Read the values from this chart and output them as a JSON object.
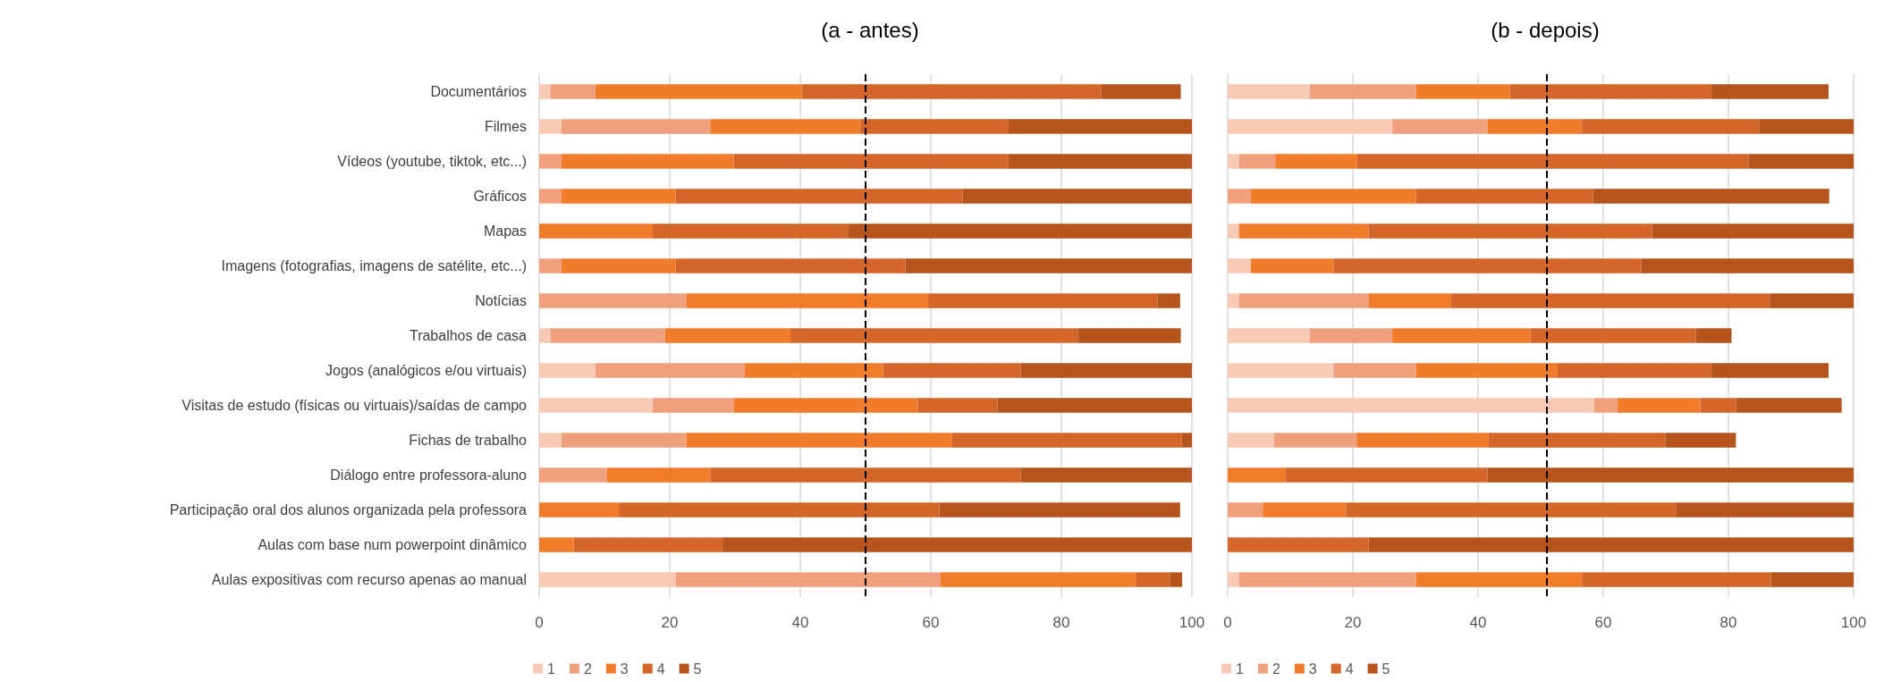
{
  "chart_data": [
    {
      "type": "bar",
      "orientation": "horizontal",
      "stacked": true,
      "title": "(a - antes)",
      "categories": [
        "Documentários",
        "Filmes",
        "Vídeos (youtube, tiktok, etc...)",
        "Gráficos",
        "Mapas",
        "Imagens (fotografias, imagens de satélite, etc...)",
        "Notícias",
        "Trabalhos de casa",
        "Jogos (analógicos e/ou virtuais)",
        "Visitas de estudo (físicas ou virtuais)/saídas de campo",
        "Fichas de trabalho",
        "Diálogo entre professora-aluno",
        "Participação oral dos alunos organizada pela professora",
        "Aulas com base num powerpoint dinâmico",
        "Aulas expositivas com recurso apenas ao manual"
      ],
      "series": [
        {
          "name": "1",
          "color": "#f8c9b4",
          "values": [
            1.7,
            3.4,
            0,
            0,
            0,
            0,
            0,
            1.7,
            8.6,
            17.4,
            3.4,
            0,
            0,
            0,
            20.9
          ]
        },
        {
          "name": "2",
          "color": "#f0a07c",
          "values": [
            6.9,
            22.8,
            3.4,
            3.4,
            0,
            3.4,
            22.6,
            17.6,
            22.9,
            12.4,
            19.2,
            10.4,
            0,
            0,
            40.6
          ]
        },
        {
          "name": "3",
          "color": "#f07c2c",
          "values": [
            31.7,
            22.9,
            26.4,
            17.5,
            17.4,
            17.5,
            37,
            19.2,
            21.2,
            28.2,
            40.6,
            15.8,
            12.2,
            5.3,
            29.9
          ]
        },
        {
          "name": "4",
          "color": "#d4662a",
          "values": [
            45.8,
            22.8,
            42.1,
            44,
            29.9,
            35.2,
            35.1,
            44,
            21.1,
            12.2,
            35.2,
            47.6,
            49.1,
            22.8,
            5.3
          ]
        },
        {
          "name": "5",
          "color": "#b5541c",
          "values": [
            12.2,
            28.1,
            28.1,
            35.1,
            52.7,
            43.9,
            3.5,
            15.8,
            26.2,
            29.8,
            1.6,
            26.2,
            36.9,
            71.9,
            1.8
          ]
        }
      ],
      "xlim": [
        0,
        100
      ],
      "xticks": [
        0,
        20,
        40,
        60,
        80,
        100
      ],
      "grid": "x",
      "legend": "bottom left",
      "ref_lines": [
        {
          "axis": "x",
          "value": 50,
          "label": null,
          "color": "#000000",
          "line_style": "dashed"
        }
      ]
    },
    {
      "type": "bar",
      "orientation": "horizontal",
      "stacked": true,
      "title": "(b - depois)",
      "categories": [
        null,
        null,
        null,
        null,
        null,
        null,
        null,
        null,
        null,
        null,
        null,
        null,
        null,
        null,
        null
      ],
      "series": [
        {
          "name": "1",
          "color": "#f8c9b4",
          "values": [
            13.1,
            26.3,
            1.8,
            0,
            1.8,
            3.7,
            1.8,
            13.1,
            16.9,
            58.5,
            7.4,
            0,
            0,
            0,
            1.8
          ]
        },
        {
          "name": "2",
          "color": "#f0a07c",
          "values": [
            17,
            15.2,
            5.8,
            3.7,
            0,
            0,
            20.7,
            13.2,
            13.2,
            3.8,
            13.2,
            0,
            5.6,
            0,
            28.3
          ]
        },
        {
          "name": "3",
          "color": "#f07c2c",
          "values": [
            15,
            15.1,
            13.1,
            26.4,
            20.7,
            13.2,
            13.2,
            22.1,
            22.6,
            13.2,
            21.1,
            9.3,
            13.3,
            0,
            26.5
          ]
        },
        {
          "name": "4",
          "color": "#d4662a",
          "values": [
            32.2,
            28.3,
            62.5,
            28.3,
            45.3,
            49.2,
            50.9,
            26.4,
            24.6,
            5.7,
            28.2,
            32.2,
            52.8,
            22.5,
            30.2
          ]
        },
        {
          "name": "5",
          "color": "#b5541c",
          "values": [
            18.7,
            15.1,
            16.8,
            37.7,
            32.2,
            33.9,
            13.4,
            5.7,
            18.7,
            16.9,
            11.3,
            58.5,
            28.3,
            77.5,
            13.2
          ]
        }
      ],
      "xlim": [
        0,
        100
      ],
      "xticks": [
        0,
        20,
        40,
        60,
        80,
        100
      ],
      "grid": "x",
      "legend": "bottom left",
      "ref_lines": [
        {
          "axis": "x",
          "value": 51,
          "label": null,
          "color": "#000000",
          "line_style": "dashed"
        }
      ]
    }
  ]
}
